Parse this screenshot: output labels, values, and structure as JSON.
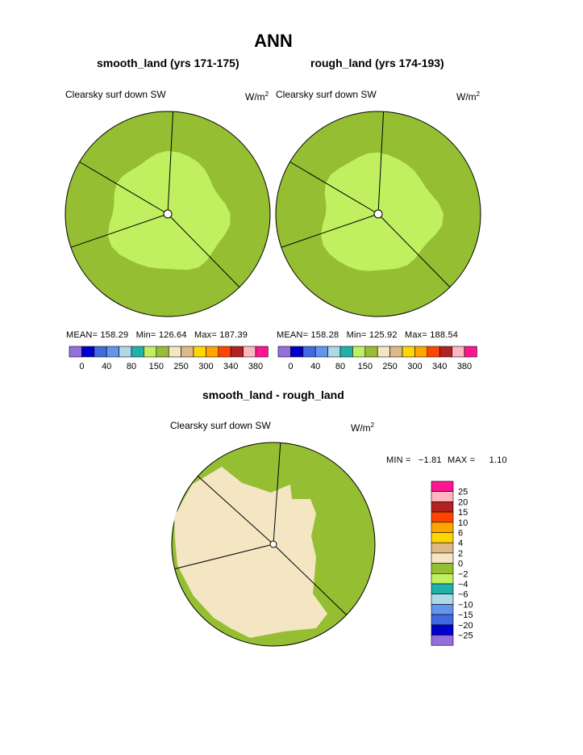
{
  "page_title": "ANN",
  "chart_data": [
    {
      "type": "polar-map",
      "title": "smooth_land (yrs 171-175)",
      "variable": "Clearsky surf down SW",
      "units_base": "W/m",
      "units_exp": "2",
      "stats": {
        "mean": "158.29",
        "min": "126.64",
        "max": "187.39"
      },
      "mean_label": "MEAN=",
      "min_label": "Min=",
      "max_label": "Max=",
      "colorbar": {
        "colors": [
          "#9370db",
          "#0000cd",
          "#4169e1",
          "#6495ed",
          "#add8e6",
          "#20b2aa",
          "#c0f060",
          "#96be32",
          "#f5e6c3",
          "#deb887",
          "#ffd700",
          "#ffa500",
          "#ff4500",
          "#b22222",
          "#ffb6c1",
          "#ff1493"
        ],
        "tick_labels": [
          "0",
          "40",
          "80",
          "150",
          "250",
          "300",
          "340",
          "380"
        ]
      },
      "region_colors": {
        "outer": "#96be32",
        "inner": "#c0f060"
      }
    },
    {
      "type": "polar-map",
      "title": "rough_land (yrs 174-193)",
      "variable": "Clearsky surf down SW",
      "units_base": "W/m",
      "units_exp": "2",
      "stats": {
        "mean": "158.28",
        "min": "125.92",
        "max": "188.54"
      },
      "mean_label": "MEAN=",
      "min_label": "Min=",
      "max_label": "Max=",
      "colorbar": {
        "colors": [
          "#9370db",
          "#0000cd",
          "#4169e1",
          "#6495ed",
          "#add8e6",
          "#20b2aa",
          "#c0f060",
          "#96be32",
          "#f5e6c3",
          "#deb887",
          "#ffd700",
          "#ffa500",
          "#ff4500",
          "#b22222",
          "#ffb6c1",
          "#ff1493"
        ],
        "tick_labels": [
          "0",
          "40",
          "80",
          "150",
          "250",
          "300",
          "340",
          "380"
        ]
      },
      "region_colors": {
        "outer": "#96be32",
        "inner": "#c0f060"
      }
    },
    {
      "type": "polar-map",
      "title": "smooth_land - rough_land",
      "variable": "Clearsky surf down SW",
      "units_base": "W/m",
      "units_exp": "2",
      "stats": {
        "min": "−1.81",
        "max": "1.10"
      },
      "min_label": "MIN =",
      "max_label": "MAX =",
      "colorbar": {
        "colors_top_to_bottom": [
          "#ff1493",
          "#ffb6c1",
          "#b22222",
          "#ff4500",
          "#ffa500",
          "#ffd700",
          "#deb887",
          "#f5e6c3",
          "#96be32",
          "#c0f060",
          "#20b2aa",
          "#add8e6",
          "#6495ed",
          "#4169e1",
          "#0000cd",
          "#9370db"
        ],
        "tick_labels_top_to_bottom": [
          "25",
          "20",
          "15",
          "10",
          "6",
          "4",
          "2",
          "0",
          "−2",
          "−4",
          "−6",
          "−10",
          "−15",
          "−20",
          "−25"
        ]
      },
      "region_colors": {
        "background": "#96be32",
        "interior": "#f5e6c3"
      }
    }
  ]
}
